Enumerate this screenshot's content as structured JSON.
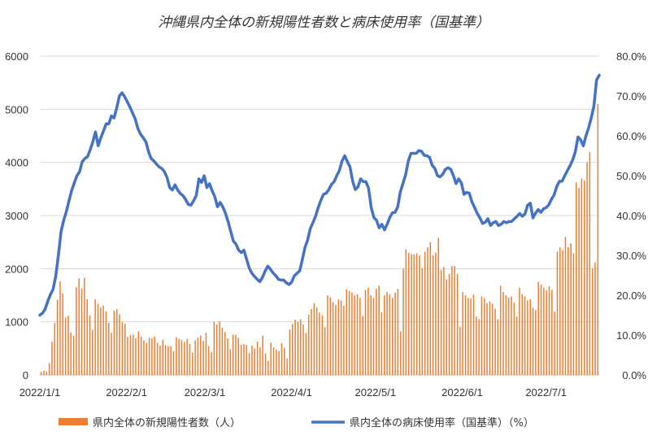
{
  "chart_data": {
    "type": "bar+line",
    "title": "沖縄県内全体の新規陽性者数と病床使用率（国基準）",
    "x_tick_labels": [
      "2022/1/1",
      "2022/2/1",
      "2022/3/1",
      "2022/4/1",
      "2022/5/1",
      "2022/6/1",
      "2022/7/1"
    ],
    "x_range": [
      "2022/1/1",
      "2022/7/20"
    ],
    "y_left": {
      "ylim": [
        0,
        6000
      ],
      "ticks": [
        "0",
        "1000",
        "2000",
        "3000",
        "4000",
        "5000",
        "6000"
      ]
    },
    "y_right": {
      "ylim": [
        0,
        80
      ],
      "ticks": [
        "0.0%",
        "10.0%",
        "20.0%",
        "30.0%",
        "40.0%",
        "50.0%",
        "60.0%",
        "70.0%",
        "80.0%"
      ]
    },
    "grid": true,
    "legend_position": "bottom",
    "series": [
      {
        "name": "県内全体の新規陽性者数（人）",
        "kind": "bar",
        "axis": "left",
        "color": "#ED7D31",
        "values": [
          60,
          80,
          60,
          225,
          626,
          980,
          1413,
          1759,
          1533,
          1080,
          1116,
          803,
          740,
          1650,
          1817,
          1631,
          1829,
          1424,
          1122,
          850,
          1423,
          1340,
          1274,
          1303,
          1200,
          981,
          790,
          1214,
          1245,
          1142,
          1000,
          963,
          716,
          750,
          760,
          690,
          820,
          725,
          652,
          601,
          700,
          690,
          720,
          606,
          552,
          658,
          561,
          540,
          542,
          450,
          709,
          680,
          660,
          620,
          680,
          582,
          419,
          650,
          700,
          741,
          640,
          793,
          542,
          425,
          1000,
          952,
          1008,
          888,
          806,
          690,
          485,
          758,
          750,
          700,
          570,
          580,
          564,
          410,
          550,
          500,
          625,
          520,
          740,
          406,
          263,
          604,
          520,
          480,
          450,
          600,
          510,
          312,
          854,
          958,
          1040,
          1000,
          1050,
          950,
          790,
          1135,
          1240,
          1350,
          1270,
          1175,
          1124,
          900,
          1500,
          1460,
          1370,
          1320,
          1420,
          1400,
          1300,
          1610,
          1580,
          1550,
          1500,
          1520,
          1450,
          1110,
          1600,
          1640,
          1500,
          1450,
          1620,
          1680,
          1180,
          1500,
          1560,
          1520,
          1450,
          1550,
          1620,
          820,
          2000,
          2360,
          2300,
          2270,
          2270,
          2290,
          2250,
          2010,
          2320,
          2400,
          2500,
          2250,
          2300,
          2580,
          1980,
          2030,
          1800,
          1900,
          2050,
          2050,
          1900,
          900,
          1560,
          1500,
          1450,
          1440,
          1510,
          1100,
          1050,
          1480,
          1450,
          1350,
          1380,
          1340,
          1250,
          1050,
          1680,
          1560,
          1500,
          1460,
          1480,
          1360,
          1100,
          1640,
          1520,
          1480,
          1400,
          1420,
          1260,
          1220,
          1750,
          1700,
          1640,
          1590,
          1670,
          1600,
          1190,
          2320,
          2400,
          2350,
          2600,
          2400,
          2480,
          2290,
          3620,
          3520,
          3700,
          3660,
          4000,
          4200,
          2010,
          2120,
          5100
        ]
      },
      {
        "name": "県内全体の病床使用率（国基準）（%）",
        "kind": "line",
        "axis": "right",
        "color": "#4472C4",
        "values": [
          15.0,
          15.5,
          16.5,
          18.5,
          20.2,
          21.5,
          24.8,
          30.0,
          36.0,
          38.8,
          41.0,
          43.7,
          46.3,
          48.2,
          50.0,
          51.0,
          53.5,
          54.3,
          54.8,
          56.5,
          58.5,
          61.0,
          57.5,
          59.5,
          61.2,
          63.0,
          63.0,
          65.0,
          64.5,
          67.0,
          70.0,
          70.8,
          69.8,
          68.5,
          67.2,
          65.7,
          64.2,
          61.8,
          60.4,
          59.5,
          58.5,
          56.0,
          54.3,
          53.7,
          52.9,
          52.2,
          51.8,
          51.0,
          49.5,
          47.0,
          46.4,
          47.7,
          46.4,
          45.5,
          45.0,
          44.0,
          42.8,
          42.6,
          43.7,
          45.0,
          49.2,
          48.3,
          50.0,
          47.0,
          48.0,
          46.2,
          44.7,
          42.2,
          43.3,
          42.2,
          40.6,
          38.5,
          36.0,
          33.6,
          32.8,
          31.3,
          30.7,
          31.3,
          29.0,
          26.8,
          25.5,
          24.7,
          24.0,
          23.4,
          24.5,
          26.1,
          27.3,
          26.5,
          25.6,
          24.9,
          24.0,
          23.8,
          23.8,
          23.1,
          22.7,
          23.3,
          24.9,
          25.5,
          26.1,
          28.9,
          32.0,
          33.8,
          36.7,
          38.2,
          39.8,
          42.0,
          43.8,
          45.3,
          45.6,
          46.5,
          47.8,
          48.5,
          50.0,
          51.3,
          53.7,
          55.0,
          53.5,
          52.2,
          48.6,
          46.5,
          47.2,
          49.2,
          48.5,
          48.5,
          46.8,
          42.0,
          39.5,
          38.8,
          36.9,
          37.8,
          36.4,
          37.8,
          39.5,
          40.7,
          40.8,
          42.2,
          46.0,
          48.1,
          50.3,
          53.7,
          55.6,
          55.6,
          55.6,
          56.3,
          56.1,
          55.1,
          55.0,
          54.6,
          52.6,
          51.8,
          50.0,
          49.7,
          50.4,
          51.6,
          52.0,
          51.6,
          50.0,
          48.0,
          49.2,
          48.2,
          45.3,
          45.8,
          45.6,
          43.4,
          42.0,
          40.5,
          39.4,
          38.0,
          38.3,
          39.2,
          37.5,
          38.2,
          38.5,
          37.5,
          37.8,
          38.5,
          38.2,
          38.5,
          38.5,
          39.2,
          39.8,
          40.5,
          39.8,
          40.4,
          42.6,
          43.1,
          39.4,
          40.6,
          41.5,
          40.8,
          41.7,
          42.0,
          42.7,
          44.1,
          45.2,
          47.3,
          48.6,
          48.6,
          50.0,
          51.3,
          52.5,
          54.0,
          56.0,
          59.7,
          59.0,
          57.5,
          60.0,
          62.0,
          64.5,
          67.5,
          74.0,
          75.2
        ]
      }
    ]
  }
}
